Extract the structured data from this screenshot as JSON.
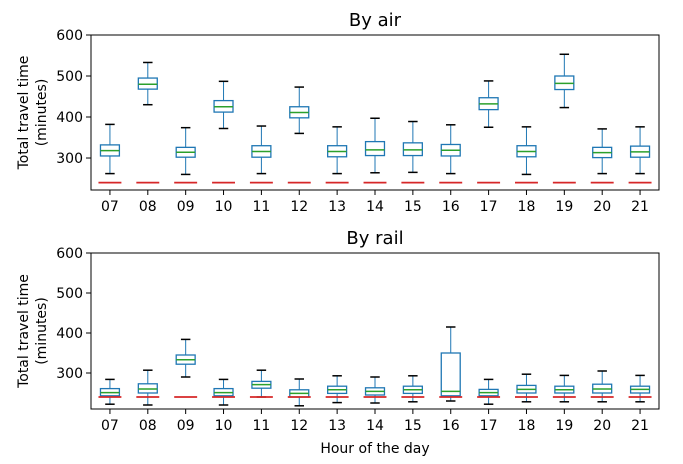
{
  "chart_data": [
    {
      "type": "box",
      "title": "By air",
      "xlabel": "",
      "ylabel_lines": [
        "Total travel time",
        "(minutes)"
      ],
      "ylim": [
        222,
        600
      ],
      "yticks": [
        300,
        400,
        500,
        600
      ],
      "categories": [
        "07",
        "08",
        "09",
        "10",
        "11",
        "12",
        "13",
        "14",
        "15",
        "16",
        "17",
        "18",
        "19",
        "20",
        "21"
      ],
      "boxes": [
        {
          "whislo": 262,
          "q1": 305,
          "med": 318,
          "q3": 332,
          "whishi": 382
        },
        {
          "whislo": 430,
          "q1": 468,
          "med": 480,
          "q3": 495,
          "whishi": 533
        },
        {
          "whislo": 260,
          "q1": 302,
          "med": 314,
          "q3": 326,
          "whishi": 374
        },
        {
          "whislo": 372,
          "q1": 412,
          "med": 425,
          "q3": 440,
          "whishi": 487
        },
        {
          "whislo": 262,
          "q1": 302,
          "med": 316,
          "q3": 330,
          "whishi": 378
        },
        {
          "whislo": 360,
          "q1": 398,
          "med": 411,
          "q3": 425,
          "whishi": 473
        },
        {
          "whislo": 262,
          "q1": 303,
          "med": 316,
          "q3": 330,
          "whishi": 376
        },
        {
          "whislo": 264,
          "q1": 306,
          "med": 320,
          "q3": 340,
          "whishi": 397
        },
        {
          "whislo": 265,
          "q1": 306,
          "med": 320,
          "q3": 337,
          "whishi": 389
        },
        {
          "whislo": 262,
          "q1": 305,
          "med": 319,
          "q3": 333,
          "whishi": 381
        },
        {
          "whislo": 375,
          "q1": 418,
          "med": 432,
          "q3": 447,
          "whishi": 488
        },
        {
          "whislo": 260,
          "q1": 303,
          "med": 316,
          "q3": 330,
          "whishi": 376
        },
        {
          "whislo": 423,
          "q1": 467,
          "med": 482,
          "q3": 500,
          "whishi": 553
        },
        {
          "whislo": 262,
          "q1": 301,
          "med": 313,
          "q3": 326,
          "whishi": 371
        },
        {
          "whislo": 262,
          "q1": 302,
          "med": 315,
          "q3": 329,
          "whishi": 376
        }
      ],
      "reference_line_value": 240,
      "colors": {
        "box": "#1f77b4",
        "median": "#2ca02c",
        "reference": "#d62728",
        "whisker": "#000000"
      }
    },
    {
      "type": "box",
      "title": "By rail",
      "xlabel": "Hour of the day",
      "ylabel_lines": [
        "Total travel time",
        "(minutes)"
      ],
      "ylim": [
        210,
        600
      ],
      "yticks": [
        300,
        400,
        500,
        600
      ],
      "categories": [
        "07",
        "08",
        "09",
        "10",
        "11",
        "12",
        "13",
        "14",
        "15",
        "16",
        "17",
        "18",
        "19",
        "20",
        "21"
      ],
      "boxes": [
        {
          "whislo": 222,
          "q1": 243,
          "med": 251,
          "q3": 261,
          "whishi": 284
        },
        {
          "whislo": 220,
          "q1": 250,
          "med": 260,
          "q3": 273,
          "whishi": 307
        },
        {
          "whislo": 290,
          "q1": 322,
          "med": 333,
          "q3": 345,
          "whishi": 384
        },
        {
          "whislo": 220,
          "q1": 243,
          "med": 251,
          "q3": 261,
          "whishi": 284
        },
        {
          "whislo": 240,
          "q1": 262,
          "med": 271,
          "q3": 279,
          "whishi": 307
        },
        {
          "whislo": 218,
          "q1": 240,
          "med": 249,
          "q3": 258,
          "whishi": 285
        },
        {
          "whislo": 226,
          "q1": 249,
          "med": 258,
          "q3": 267,
          "whishi": 293
        },
        {
          "whislo": 225,
          "q1": 245,
          "med": 254,
          "q3": 263,
          "whishi": 290
        },
        {
          "whislo": 228,
          "q1": 249,
          "med": 258,
          "q3": 267,
          "whishi": 293
        },
        {
          "whislo": 230,
          "q1": 243,
          "med": 254,
          "q3": 350,
          "whishi": 415
        },
        {
          "whislo": 222,
          "q1": 243,
          "med": 251,
          "q3": 259,
          "whishi": 284
        },
        {
          "whislo": 228,
          "q1": 250,
          "med": 259,
          "q3": 269,
          "whishi": 297
        },
        {
          "whislo": 228,
          "q1": 250,
          "med": 258,
          "q3": 267,
          "whishi": 294
        },
        {
          "whislo": 228,
          "q1": 250,
          "med": 260,
          "q3": 272,
          "whishi": 305
        },
        {
          "whislo": 228,
          "q1": 250,
          "med": 259,
          "q3": 267,
          "whishi": 294
        }
      ],
      "reference_line_value": 240,
      "colors": {
        "box": "#1f77b4",
        "median": "#2ca02c",
        "reference": "#d62728",
        "whisker": "#000000"
      }
    }
  ]
}
